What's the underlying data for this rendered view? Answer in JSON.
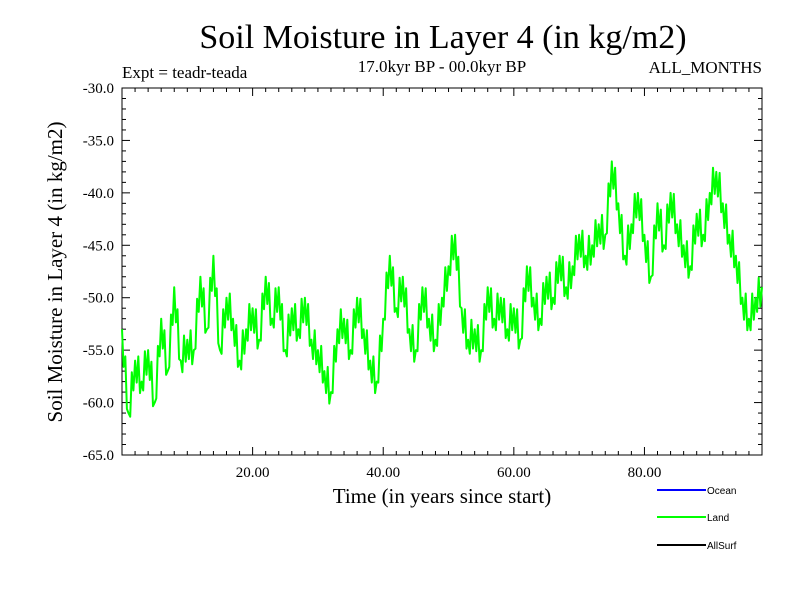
{
  "chart_data": {
    "type": "line",
    "title": "Soil Moisture in Layer 4 (in kg/m2)",
    "experiment": "Expt = teadr-teada",
    "period": "17.0kyr BP - 00.0kyr BP",
    "season": "ALL_MONTHS",
    "xlabel": "Time (in years since start)",
    "ylabel": "Soil Moisture in Layer 4 (in kg/m2)",
    "xlim": [
      0,
      98
    ],
    "ylim": [
      -65,
      -30
    ],
    "x_ticks": [
      20,
      40,
      60,
      80
    ],
    "x_tick_labels": [
      "20.00",
      "40.00",
      "60.00",
      "80.00"
    ],
    "y_ticks": [
      -65,
      -60,
      -55,
      -50,
      -45,
      -40,
      -35,
      -30
    ],
    "y_tick_labels": [
      "-65.0",
      "-60.0",
      "-55.0",
      "-50.0",
      "-45.0",
      "-40.0",
      "-35.0",
      "-30.0"
    ],
    "legend": [
      {
        "name": "Ocean",
        "color": "#0000ff"
      },
      {
        "name": "Land",
        "color": "#00ff00"
      },
      {
        "name": "AllSurf",
        "color": "#000000"
      }
    ],
    "series": [
      {
        "name": "Land",
        "color": "#00ff00",
        "x": [
          0,
          1,
          2,
          3,
          4,
          5,
          6,
          7,
          8,
          9,
          10,
          11,
          12,
          13,
          14,
          15,
          16,
          17,
          18,
          19,
          20,
          21,
          22,
          23,
          24,
          25,
          26,
          27,
          28,
          29,
          30,
          31,
          32,
          33,
          34,
          35,
          36,
          37,
          38,
          39,
          40,
          41,
          42,
          43,
          44,
          45,
          46,
          47,
          48,
          49,
          50,
          51,
          52,
          53,
          54,
          55,
          56,
          57,
          58,
          59,
          60,
          61,
          62,
          63,
          64,
          65,
          66,
          67,
          68,
          69,
          70,
          71,
          72,
          73,
          74,
          75,
          76,
          77,
          78,
          79,
          80,
          81,
          82,
          83,
          84,
          85,
          86,
          87,
          88,
          89,
          90,
          91,
          92,
          93,
          94,
          95,
          96,
          97,
          98
        ],
        "values": [
          -53,
          -61,
          -56,
          -58,
          -55,
          -60,
          -52,
          -57,
          -49,
          -56,
          -54,
          -55,
          -48,
          -53,
          -46,
          -55,
          -50,
          -52,
          -56,
          -53,
          -51,
          -54,
          -48,
          -52,
          -49,
          -55,
          -51,
          -53,
          -50,
          -54,
          -55,
          -57,
          -59,
          -53,
          -52,
          -55,
          -50,
          -53,
          -56,
          -58,
          -52,
          -46,
          -51,
          -48,
          -53,
          -55,
          -49,
          -52,
          -54,
          -50,
          -47,
          -44,
          -51,
          -54,
          -53,
          -55,
          -49,
          -52,
          -50,
          -53,
          -51,
          -54,
          -47,
          -50,
          -52,
          -48,
          -50,
          -46,
          -49,
          -47,
          -44,
          -46,
          -45,
          -43,
          -44,
          -37,
          -41,
          -46,
          -43,
          -40,
          -44,
          -48,
          -41,
          -45,
          -40,
          -43,
          -45,
          -47,
          -42,
          -44,
          -40,
          -38,
          -41,
          -44,
          -46,
          -50,
          -52,
          -50,
          -49
        ]
      }
    ]
  }
}
